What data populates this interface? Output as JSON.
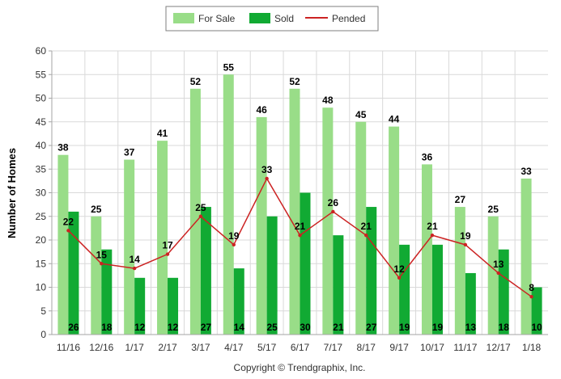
{
  "chart_data": {
    "type": "bar",
    "categories": [
      "11/16",
      "12/16",
      "1/17",
      "2/17",
      "3/17",
      "4/17",
      "5/17",
      "6/17",
      "7/17",
      "8/17",
      "9/17",
      "10/17",
      "11/17",
      "12/17",
      "1/18"
    ],
    "series": [
      {
        "name": "For Sale",
        "type": "bar",
        "color": "#99dd88",
        "values": [
          38,
          25,
          37,
          41,
          52,
          55,
          46,
          52,
          48,
          45,
          44,
          36,
          27,
          25,
          33
        ]
      },
      {
        "name": "Sold",
        "type": "bar",
        "color": "#11aa33",
        "values": [
          26,
          18,
          12,
          12,
          27,
          14,
          25,
          30,
          21,
          27,
          19,
          19,
          13,
          18,
          10
        ]
      },
      {
        "name": "Pended",
        "type": "line",
        "color": "#cc2222",
        "values": [
          22,
          15,
          14,
          17,
          25,
          19,
          33,
          21,
          26,
          21,
          12,
          21,
          19,
          13,
          8
        ]
      }
    ],
    "title": "",
    "xlabel": "",
    "ylabel": "Number of Homes",
    "ylim": [
      0,
      60
    ],
    "yticks": [
      0,
      5,
      10,
      15,
      20,
      25,
      30,
      35,
      40,
      45,
      50,
      55,
      60
    ],
    "grid": true,
    "legend": "top-center",
    "copyright": "Copyright © Trendgraphix, Inc."
  }
}
